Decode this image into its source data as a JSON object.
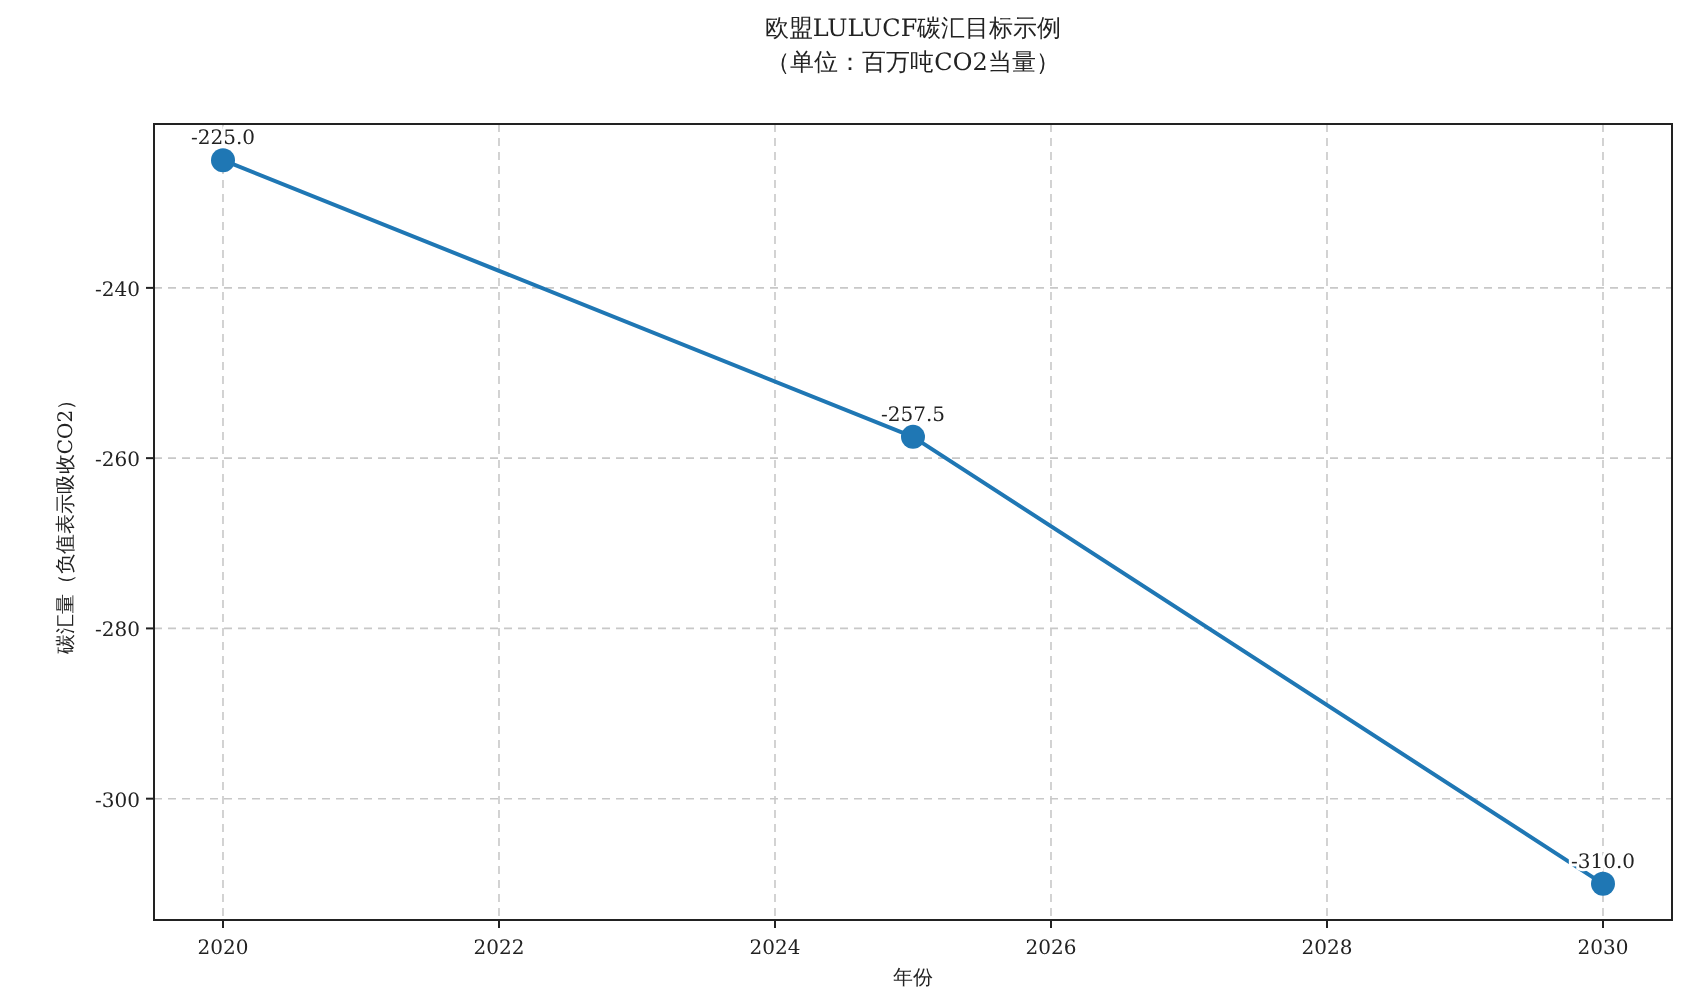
{
  "chart_data": {
    "type": "line",
    "title": "欧盟LULUCF碳汇目标示例",
    "subtitle": "（单位：百万吨CO2当量）",
    "xlabel": "年份",
    "ylabel": "碳汇量（负值表示吸收CO2）",
    "x": [
      2020,
      2025,
      2030
    ],
    "series": [
      {
        "color": "#1f77b4",
        "values": [
          -225.0,
          -257.5,
          -310.0
        ]
      }
    ],
    "value_labels": [
      "-225.0",
      "-257.5",
      "-310.0"
    ],
    "xlim": [
      2019.5,
      2030.5
    ],
    "xticks": [
      2020,
      2022,
      2024,
      2026,
      2028,
      2030
    ],
    "ylim": [
      -314.25,
      -220.75
    ],
    "yticks": [
      -240,
      -260,
      -280,
      -300
    ],
    "grid": true,
    "marker": "circle",
    "line_style": "solid"
  }
}
